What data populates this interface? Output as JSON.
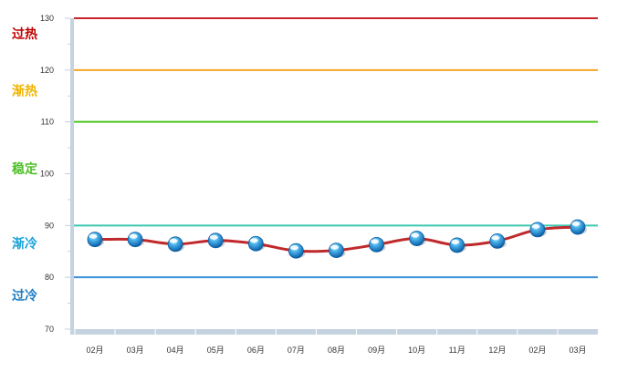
{
  "chart_data": {
    "type": "line",
    "categories": [
      "02月",
      "03月",
      "04月",
      "05月",
      "06月",
      "07月",
      "08月",
      "09月",
      "10月",
      "11月",
      "12月",
      "02月",
      "03月"
    ],
    "series": [
      {
        "values": [
          87.3,
          87.3,
          86.4,
          87.1,
          86.5,
          85.1,
          85.2,
          86.3,
          87.5,
          86.2,
          87.0,
          89.2,
          89.7
        ],
        "color": "#c0292b"
      }
    ],
    "ylim": [
      70,
      130
    ],
    "yticks": [
      "70",
      "80",
      "90",
      "100",
      "110",
      "120",
      "130"
    ],
    "grid": false,
    "thresholds": [
      {
        "value": 130,
        "color": "#c8262c"
      },
      {
        "value": 120,
        "color": "#f5a623"
      },
      {
        "value": 110,
        "color": "#4bc51d"
      },
      {
        "value": 90,
        "color": "#3dc9b0"
      },
      {
        "value": 80,
        "color": "#3a8fd9"
      }
    ],
    "zones": [
      {
        "label": "过热",
        "y": 127,
        "color": "#c00000"
      },
      {
        "label": "渐热",
        "y": 116,
        "color": "#f0b400"
      },
      {
        "label": "稳定",
        "y": 101,
        "color": "#4fbf26"
      },
      {
        "label": "渐冷",
        "y": 86.5,
        "color": "#1aa3d9"
      },
      {
        "label": "过冷",
        "y": 76.5,
        "color": "#1a7bc4"
      }
    ],
    "marker_color": "#1e90d6",
    "axis_color": "#c5d2e0"
  }
}
